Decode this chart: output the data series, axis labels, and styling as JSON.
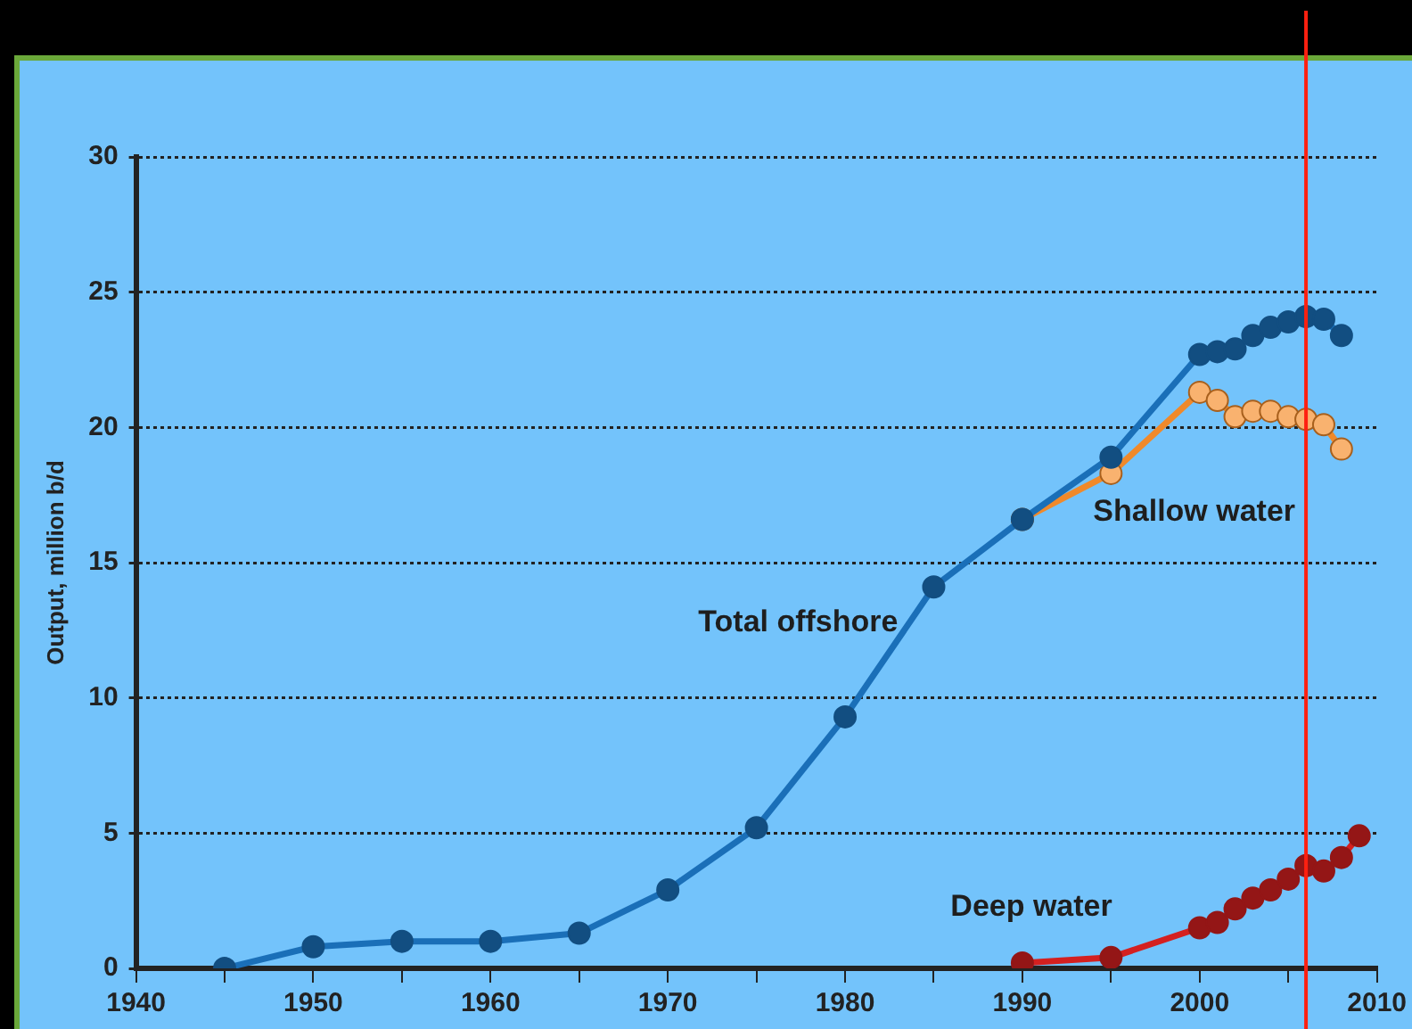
{
  "chart_data": {
    "type": "line",
    "ylabel": "Output, million b/d",
    "xlim": [
      1940,
      2010
    ],
    "ylim": [
      0,
      30
    ],
    "xticks": [
      1940,
      {
        "value": 1945,
        "label": null
      },
      1950,
      {
        "value": 1955,
        "label": null
      },
      1960,
      {
        "value": 1965,
        "label": null
      },
      1970,
      {
        "value": 1975,
        "label": null
      },
      1980,
      {
        "value": 1985,
        "label": null
      },
      1990,
      {
        "value": 1995,
        "label": null
      },
      2000,
      {
        "value": 2005,
        "label": null
      },
      2010
    ],
    "yticks": [
      0,
      5,
      10,
      15,
      20,
      25,
      30
    ],
    "grid": "y",
    "legend": false,
    "marker": "circle",
    "line_style": "solid",
    "series": [
      {
        "name": "Total offshore",
        "color": "#1a6fb8",
        "x": [
          1945,
          1950,
          1955,
          1960,
          1965,
          1970,
          1975,
          1980,
          1985,
          1990,
          1995,
          2000,
          2001,
          2002,
          2003,
          2004,
          2005,
          2006,
          2007,
          2008
        ],
        "values": [
          0,
          0.8,
          1.0,
          1.0,
          1.3,
          2.9,
          5.2,
          9.3,
          14.1,
          16.6,
          18.9,
          22.7,
          22.8,
          22.9,
          23.4,
          23.7,
          23.9,
          24.1,
          24.0,
          23.4
        ]
      },
      {
        "name": "Shallow water",
        "color": "#f0892a",
        "x": [
          1990,
          1995,
          2000,
          2001,
          2002,
          2003,
          2004,
          2005,
          2006,
          2007,
          2008
        ],
        "values": [
          16.6,
          18.3,
          21.3,
          21.0,
          20.4,
          20.6,
          20.6,
          20.4,
          20.3,
          20.1,
          19.2
        ]
      },
      {
        "name": "Deep water",
        "color": "#d42020",
        "x": [
          1990,
          1995,
          2000,
          2001,
          2002,
          2003,
          2004,
          2005,
          2006,
          2007,
          2008,
          2009
        ],
        "values": [
          0.2,
          0.4,
          1.5,
          1.7,
          2.2,
          2.6,
          2.9,
          3.3,
          3.8,
          3.6,
          4.1,
          4.9
        ]
      }
    ],
    "ref_lines": [
      {
        "axis": "x",
        "value": 2006,
        "color": "#ff2010"
      }
    ]
  }
}
